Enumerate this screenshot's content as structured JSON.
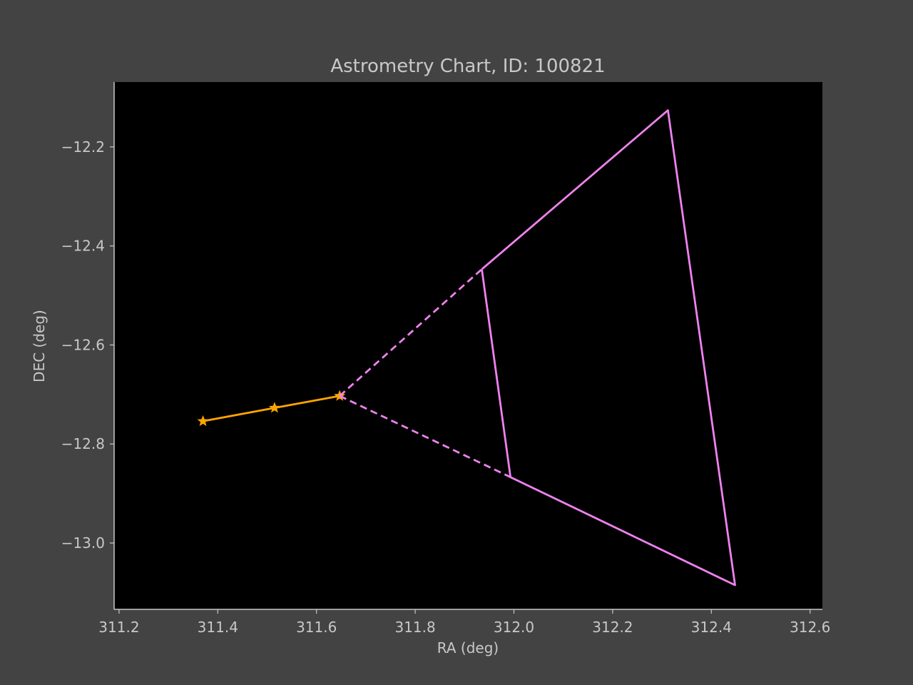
{
  "chart_data": {
    "type": "line",
    "title": "Astrometry Chart, ID: 100821",
    "xlabel": "RA (deg)",
    "ylabel": "DEC (deg)",
    "xlim": [
      311.19,
      312.625
    ],
    "ylim": [
      -13.134,
      -12.069
    ],
    "xticks": [
      311.2,
      311.4,
      311.6,
      311.8,
      312.0,
      312.2,
      312.4,
      312.6
    ],
    "xtick_labels": [
      "311.2",
      "311.4",
      "311.6",
      "311.8",
      "312.0",
      "312.2",
      "312.4",
      "312.6"
    ],
    "yticks": [
      -12.2,
      -12.4,
      -12.6,
      -12.8,
      -13.0
    ],
    "ytick_labels": [
      "−12.2",
      "−12.4",
      "−12.6",
      "−12.8",
      "−13.0"
    ],
    "grid": false,
    "background_color": "#000000",
    "figure_color": "#434343",
    "series": [
      {
        "kind": "track",
        "color": "#ffa500",
        "style": "solid",
        "marker": "star",
        "x": [
          311.37,
          311.515,
          311.647
        ],
        "y": [
          -12.754,
          -12.727,
          -12.703
        ]
      },
      {
        "kind": "uncertainty-cone-upper-dashed",
        "color": "#ee82ee",
        "style": "dashed",
        "x": [
          311.647,
          311.935
        ],
        "y": [
          -12.703,
          -12.447
        ]
      },
      {
        "kind": "uncertainty-cone-lower-dashed",
        "color": "#ee82ee",
        "style": "dashed",
        "x": [
          311.647,
          311.993
        ],
        "y": [
          -12.703,
          -12.867
        ]
      },
      {
        "kind": "uncertainty-cone-outline",
        "color": "#ee82ee",
        "style": "solid",
        "x": [
          311.935,
          312.312,
          312.448,
          311.993,
          311.935
        ],
        "y": [
          -12.447,
          -12.126,
          -13.085,
          -12.867,
          -12.447
        ]
      }
    ]
  }
}
